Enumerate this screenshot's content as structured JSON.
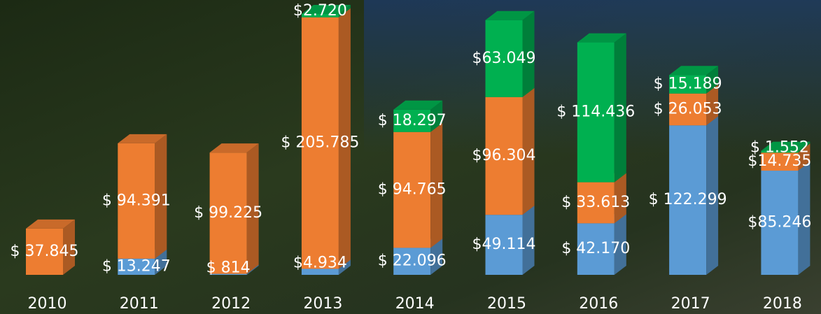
{
  "chart_data": {
    "type": "bar3d",
    "stacked": true,
    "categories": [
      "2010",
      "2011",
      "2012",
      "2013",
      "2014",
      "2015",
      "2016",
      "2017",
      "2018"
    ],
    "series": [
      {
        "color": "#5b9bd5",
        "values": [
          null,
          13247,
          814,
          4934,
          22096,
          49114,
          42170,
          122299,
          85246
        ],
        "value_labels": [
          null,
          "$ 13.247",
          "$ 814",
          "$4.934",
          "$ 22.096",
          "$49.114",
          "$ 42.170",
          "$ 122.299",
          "$85.246"
        ]
      },
      {
        "color": "#ed7d31",
        "values": [
          37845,
          94391,
          99225,
          205785,
          94765,
          96304,
          33613,
          26053,
          14735
        ],
        "value_labels": [
          "$ 37.845",
          "$ 94.391",
          "$ 99.225",
          "$ 205.785",
          "$ 94.765",
          "$96.304",
          "$ 33.613",
          "$ 26.053",
          "$14.735"
        ]
      },
      {
        "color": "#00b050",
        "values": [
          null,
          null,
          null,
          2720,
          18297,
          63049,
          114436,
          15189,
          1552
        ],
        "value_labels": [
          null,
          null,
          null,
          "$2.720",
          "$ 18.297",
          "$63.049",
          "$ 114.436",
          "$ 15.189",
          "$ 1.552"
        ]
      }
    ]
  }
}
